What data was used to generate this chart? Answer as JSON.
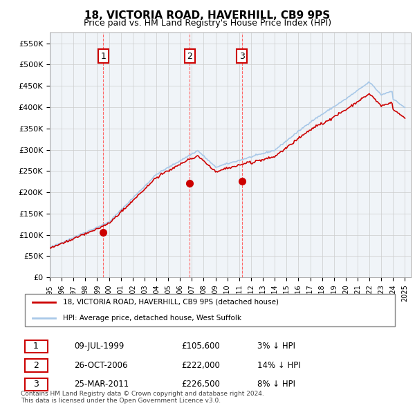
{
  "title": "18, VICTORIA ROAD, HAVERHILL, CB9 9PS",
  "subtitle": "Price paid vs. HM Land Registry's House Price Index (HPI)",
  "ylabel_ticks": [
    "£0",
    "£50K",
    "£100K",
    "£150K",
    "£200K",
    "£250K",
    "£300K",
    "£350K",
    "£400K",
    "£450K",
    "£500K",
    "£550K"
  ],
  "ytick_values": [
    0,
    50000,
    100000,
    150000,
    200000,
    250000,
    300000,
    350000,
    400000,
    450000,
    500000,
    550000
  ],
  "ylim": [
    0,
    575000
  ],
  "sale_dates_num": [
    1999.52,
    2006.82,
    2011.23
  ],
  "sale_prices": [
    105600,
    222000,
    226500
  ],
  "sale_labels": [
    "1",
    "2",
    "3"
  ],
  "legend_line1": "18, VICTORIA ROAD, HAVERHILL, CB9 9PS (detached house)",
  "legend_line2": "HPI: Average price, detached house, West Suffolk",
  "table_rows": [
    {
      "num": "1",
      "date": "09-JUL-1999",
      "price": "£105,600",
      "hpi": "3% ↓ HPI"
    },
    {
      "num": "2",
      "date": "26-OCT-2006",
      "price": "£222,000",
      "hpi": "14% ↓ HPI"
    },
    {
      "num": "3",
      "date": "25-MAR-2011",
      "price": "£226,500",
      "hpi": "8% ↓ HPI"
    }
  ],
  "footer": "Contains HM Land Registry data © Crown copyright and database right 2024.\nThis data is licensed under the Open Government Licence v3.0.",
  "hpi_color": "#a8c8e8",
  "price_color": "#cc0000",
  "marker_color": "#cc0000",
  "bg_color": "#ffffff",
  "grid_color": "#cccccc",
  "vline_color": "#ff6666"
}
